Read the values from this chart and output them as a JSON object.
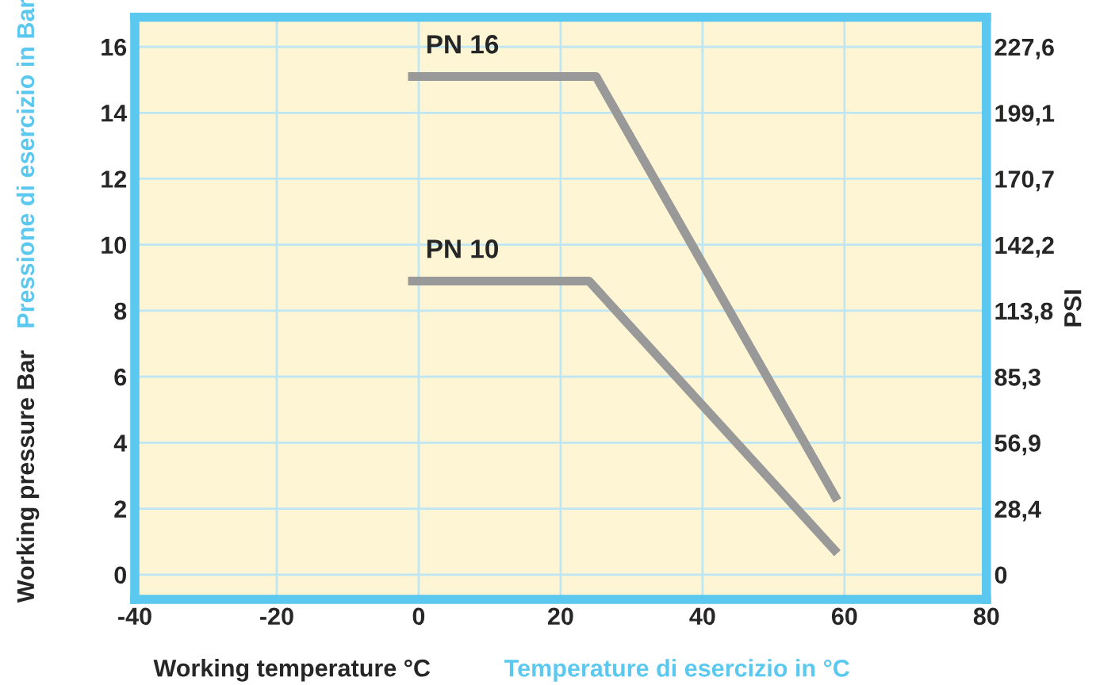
{
  "chart_data": {
    "type": "line",
    "xlabel": "Working temperature °C",
    "ylabel": "Working pressure Bar",
    "y2label": "PSI",
    "annotations": [
      "Pressione di esercizio in Bar",
      "Temperature di esercizio in °C"
    ],
    "xlim": [
      -40,
      80
    ],
    "xticks": [
      -40,
      -20,
      0,
      20,
      40,
      60,
      80
    ],
    "ylim": [
      -0.75,
      16.9
    ],
    "yticks": [
      0,
      2,
      4,
      6,
      8,
      10,
      12,
      14,
      16
    ],
    "y2lim": [
      -10.67,
      240.4
    ],
    "y2ticks": [
      {
        "value": 0,
        "label": "0"
      },
      {
        "value": 28.4,
        "label": "28,4"
      },
      {
        "value": 56.9,
        "label": "56,9"
      },
      {
        "value": 85.3,
        "label": "85,3"
      },
      {
        "value": 113.8,
        "label": "113,8"
      },
      {
        "value": 142.2,
        "label": "142,2"
      },
      {
        "value": 170.7,
        "label": "170,7"
      },
      {
        "value": 199.1,
        "label": "199,1"
      },
      {
        "value": 227.6,
        "label": "227,6"
      }
    ],
    "grid": true,
    "marker": "none",
    "line_style": "solid",
    "series": [
      {
        "name": "PN 16",
        "color": "#999999",
        "x": [
          -1.5,
          25,
          59
        ],
        "values": [
          15.1,
          15.1,
          2.25
        ]
      },
      {
        "name": "PN 10",
        "color": "#999999",
        "x": [
          -1.5,
          24,
          59
        ],
        "values": [
          8.9,
          8.9,
          0.65
        ]
      }
    ]
  }
}
